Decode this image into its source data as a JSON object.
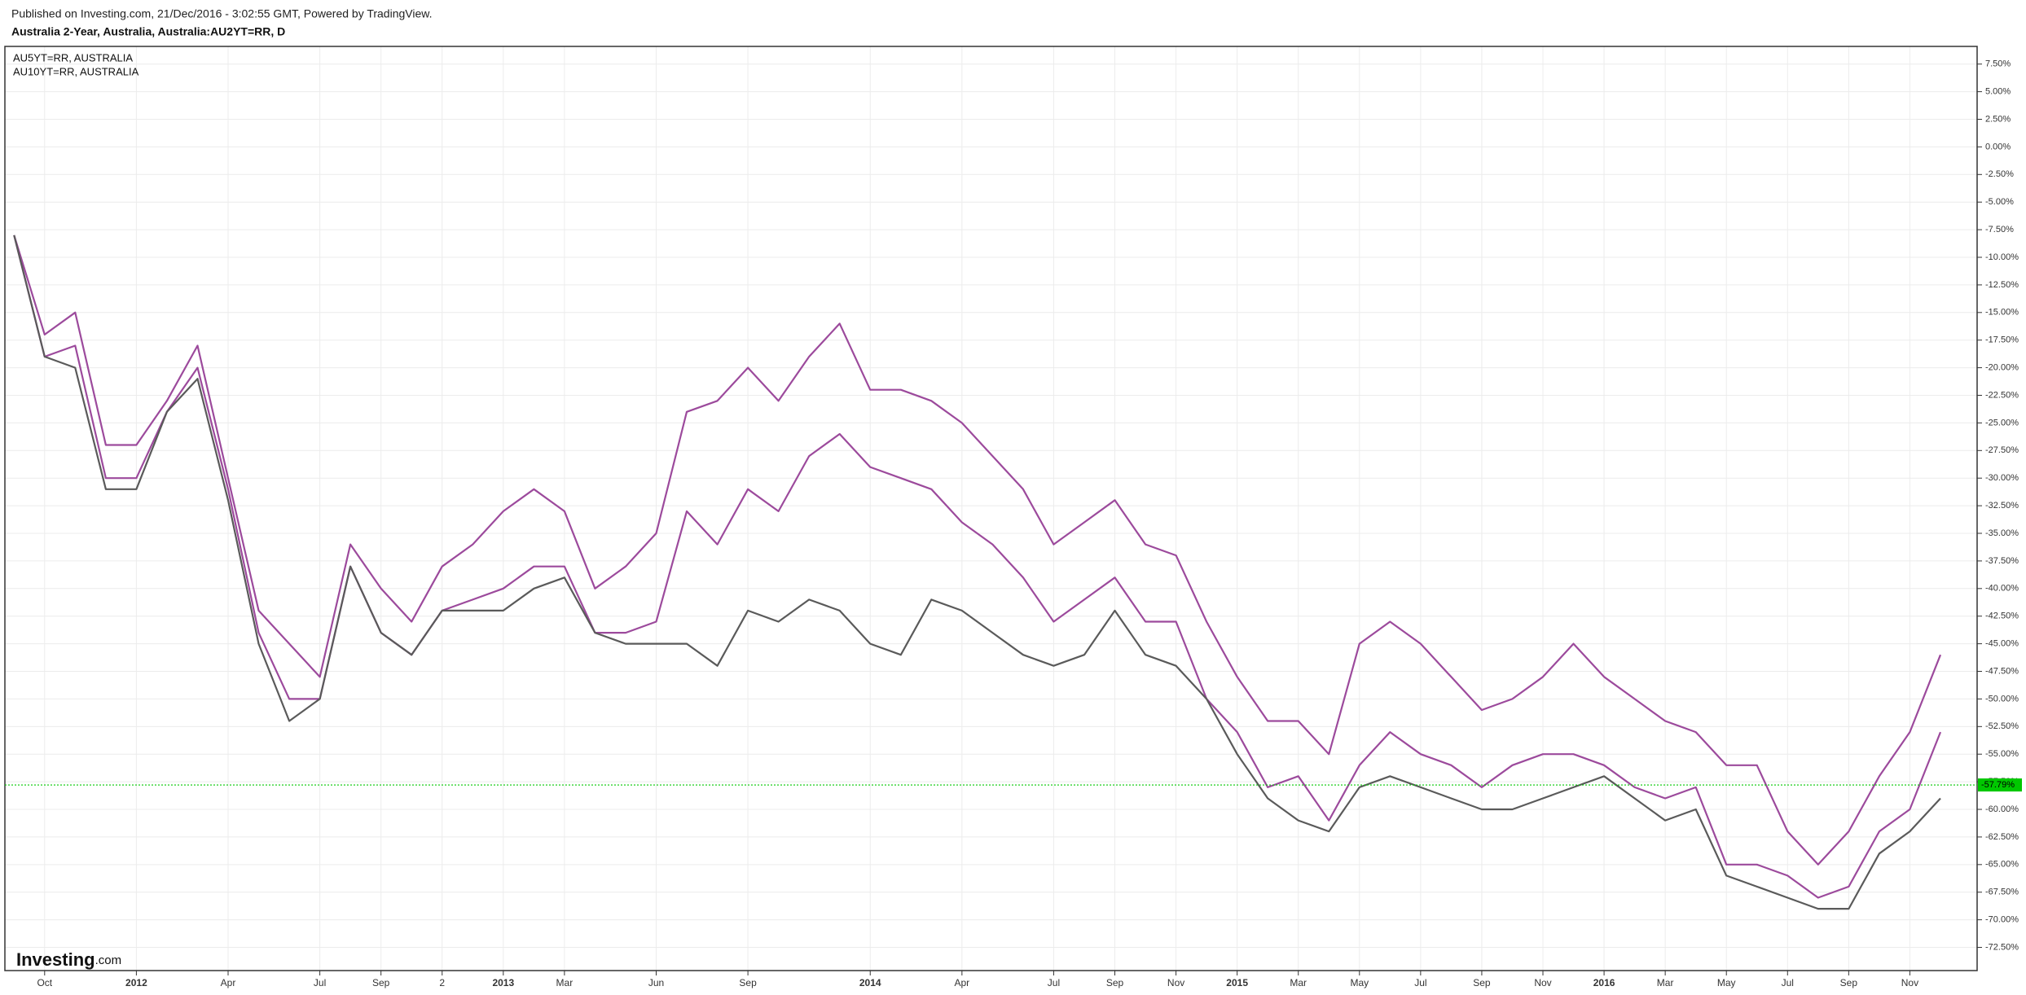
{
  "header": {
    "published": "Published on Investing.com, 21/Dec/2016 - 3:02:55 GMT, Powered by TradingView.",
    "title": "Australia 2-Year, Australia, Australia:AU2YT=RR, D"
  },
  "logo": {
    "name": "Investing",
    "suffix": ".com"
  },
  "chart_data": {
    "type": "line",
    "categories": [
      null,
      "Oct",
      null,
      null,
      "2012",
      null,
      null,
      "Apr",
      null,
      null,
      "Jul",
      null,
      "Sep",
      null,
      "2",
      null,
      "2013",
      null,
      "Mar",
      null,
      null,
      "Jun",
      null,
      null,
      "Sep",
      null,
      null,
      null,
      "2014",
      null,
      null,
      "Apr",
      null,
      null,
      "Jul",
      null,
      "Sep",
      null,
      "Nov",
      null,
      "2015",
      null,
      "Mar",
      null,
      "May",
      null,
      "Jul",
      null,
      "Sep",
      null,
      "Nov",
      null,
      "2016",
      null,
      "Mar",
      null,
      "May",
      null,
      "Jul",
      null,
      "Sep",
      null,
      "Nov",
      null
    ],
    "xlim": [
      -0.3,
      64.2
    ],
    "ylim": [
      -74.6,
      9.1
    ],
    "yticks": [
      {
        "value": 7.5,
        "label": "7.50%"
      },
      {
        "value": 5,
        "label": "5.00%"
      },
      {
        "value": 2.5,
        "label": "2.50%"
      },
      {
        "value": 0,
        "label": "0.00%"
      },
      {
        "value": -2.5,
        "label": "-2.50%"
      },
      {
        "value": -5,
        "label": "-5.00%"
      },
      {
        "value": -7.5,
        "label": "-7.50%"
      },
      {
        "value": -10,
        "label": "-10.00%"
      },
      {
        "value": -12.5,
        "label": "-12.50%"
      },
      {
        "value": -15,
        "label": "-15.00%"
      },
      {
        "value": -17.5,
        "label": "-17.50%"
      },
      {
        "value": -20,
        "label": "-20.00%"
      },
      {
        "value": -22.5,
        "label": "-22.50%"
      },
      {
        "value": -25,
        "label": "-25.00%"
      },
      {
        "value": -27.5,
        "label": "-27.50%"
      },
      {
        "value": -30,
        "label": "-30.00%"
      },
      {
        "value": -32.5,
        "label": "-32.50%"
      },
      {
        "value": -35,
        "label": "-35.00%"
      },
      {
        "value": -37.5,
        "label": "-37.50%"
      },
      {
        "value": -40,
        "label": "-40.00%"
      },
      {
        "value": -42.5,
        "label": "-42.50%"
      },
      {
        "value": -45,
        "label": "-45.00%"
      },
      {
        "value": -47.5,
        "label": "-47.50%"
      },
      {
        "value": -50,
        "label": "-50.00%"
      },
      {
        "value": -52.5,
        "label": "-52.50%"
      },
      {
        "value": -55,
        "label": "-55.00%"
      },
      {
        "value": -57.5,
        "label": "-57.50%"
      },
      {
        "value": -60,
        "label": "-60.00%"
      },
      {
        "value": -62.5,
        "label": "-62.50%"
      },
      {
        "value": -65,
        "label": "-65.00%"
      },
      {
        "value": -67.5,
        "label": "-67.50%"
      },
      {
        "value": -70,
        "label": "-70.00%"
      },
      {
        "value": -72.5,
        "label": "-72.50%"
      }
    ],
    "grid": true,
    "last_value": {
      "value": -57.79,
      "label": "-57.79%",
      "color": "#00c800"
    },
    "series": [
      {
        "name": "AU10YT=RR, AUSTRALIA",
        "color": "#9c4a9c",
        "values": [
          -8,
          -17,
          -15,
          -27,
          -27,
          -23,
          -18,
          -30,
          -42,
          -45,
          -48,
          -36,
          -40,
          -43,
          -38,
          -36,
          -33,
          -31,
          -33,
          -40,
          -38,
          -35,
          -24,
          -23,
          -20,
          -23,
          -19,
          -16,
          -22,
          -22,
          -23,
          -25,
          -28,
          -31,
          -36,
          -34,
          -32,
          -36,
          -37,
          -43,
          -48,
          -52,
          -52,
          -55,
          -45,
          -43,
          -45,
          -48,
          -51,
          -50,
          -48,
          -45,
          -48,
          -50,
          -52,
          -53,
          -56,
          -56,
          -62,
          -65,
          -62,
          -57,
          -53,
          -46
        ]
      },
      {
        "name": "AU5YT=RR, AUSTRALIA",
        "color": "#9c4a9c",
        "values": [
          -8,
          -19,
          -18,
          -30,
          -30,
          -24,
          -20,
          -31,
          -44,
          -50,
          -50,
          -38,
          -44,
          -46,
          -42,
          -41,
          -40,
          -38,
          -38,
          -44,
          -44,
          -43,
          -33,
          -36,
          -31,
          -33,
          -28,
          -26,
          -29,
          -30,
          -31,
          -34,
          -36,
          -39,
          -43,
          -41,
          -39,
          -43,
          -43,
          -50,
          -53,
          -58,
          -57,
          -61,
          -56,
          -53,
          -55,
          -56,
          -58,
          -56,
          -55,
          -55,
          -56,
          -58,
          -59,
          -58,
          -65,
          -65,
          -66,
          -68,
          -67,
          -62,
          -60,
          -53
        ]
      },
      {
        "name": "Australia 2-Year",
        "color": "#5a5a5a",
        "values": [
          -8,
          -19,
          -20,
          -31,
          -31,
          -24,
          -21,
          -32,
          -45,
          -52,
          -50,
          -38,
          -44,
          -46,
          -42,
          -42,
          -42,
          -40,
          -39,
          -44,
          -45,
          -45,
          -45,
          -47,
          -42,
          -43,
          -41,
          -42,
          -45,
          -46,
          -41,
          -42,
          -44,
          -46,
          -47,
          -46,
          -42,
          -46,
          -47,
          -50,
          -55,
          -59,
          -61,
          -62,
          -58,
          -57,
          -58,
          -59,
          -60,
          -60,
          -59,
          -58,
          -57,
          -59,
          -61,
          -60,
          -66,
          -67,
          -68,
          -69,
          -69,
          -64,
          -62,
          -59
        ]
      }
    ]
  }
}
